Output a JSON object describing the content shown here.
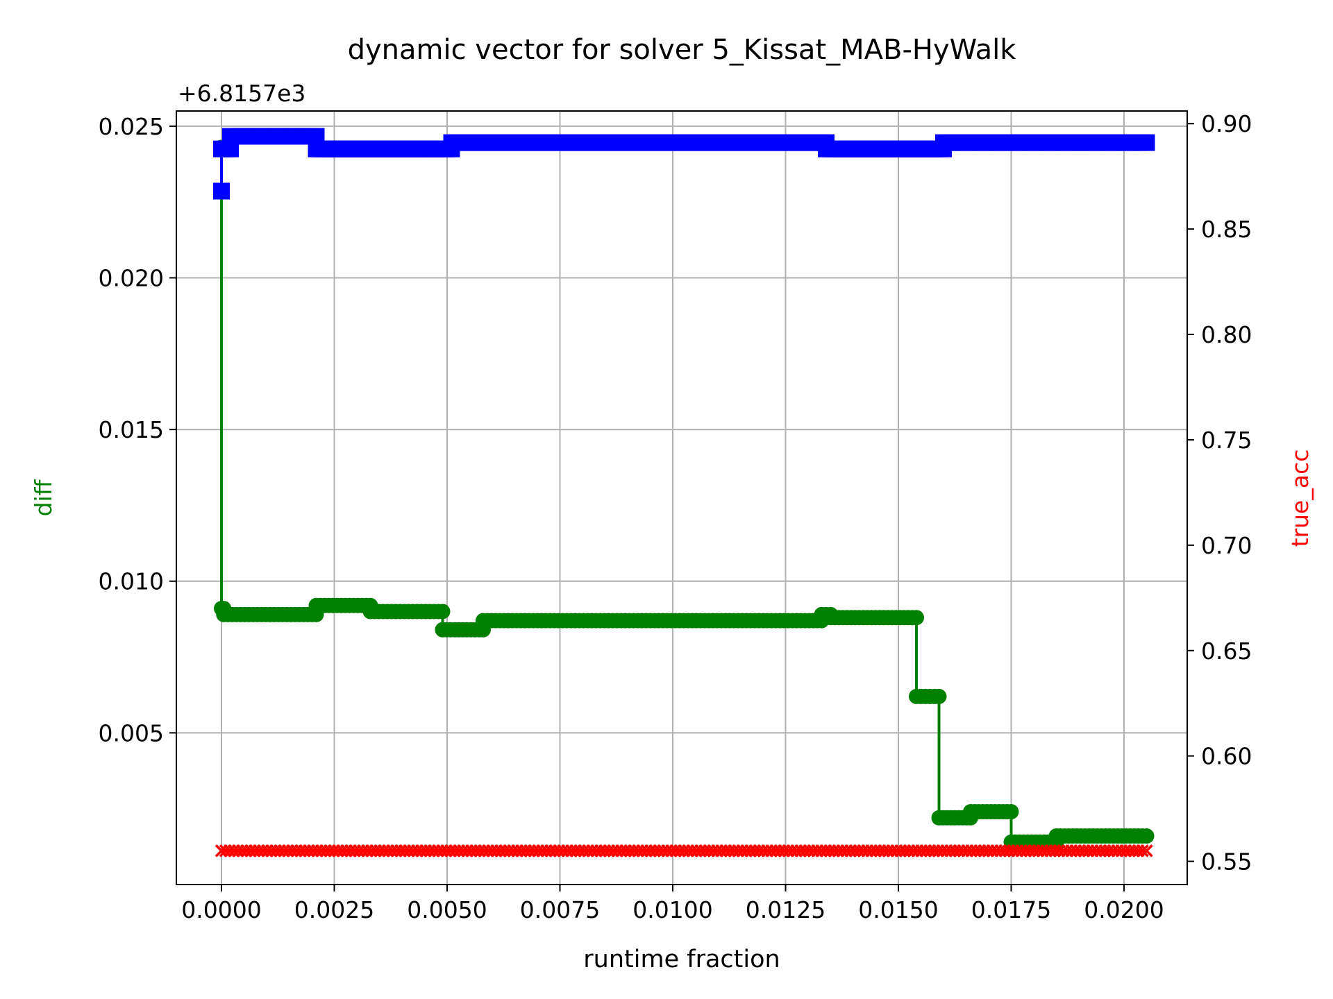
{
  "chart_data": {
    "type": "line",
    "title": "dynamic vector for solver 5_Kissat_MAB-HyWalk",
    "xlabel": "runtime fraction",
    "ylabel_left": "diff",
    "ylabel_right": "true_acc",
    "offset_label": "+6.8157e3",
    "xlim": [
      -0.001,
      0.0214
    ],
    "ylim_left": [
      0.0,
      0.0255
    ],
    "ylim_right": [
      0.539,
      0.906
    ],
    "x_ticks": [
      0.0,
      0.0025,
      0.005,
      0.0075,
      0.01,
      0.0125,
      0.015,
      0.0175,
      0.02
    ],
    "x_tick_labels": [
      "0.0000",
      "0.0025",
      "0.0050",
      "0.0075",
      "0.0100",
      "0.0125",
      "0.0150",
      "0.0175",
      "0.0200"
    ],
    "y_left_ticks": [
      0.005,
      0.01,
      0.015,
      0.02,
      0.025
    ],
    "y_left_tick_labels": [
      "0.005",
      "0.010",
      "0.015",
      "0.020",
      "0.025"
    ],
    "y_right_ticks": [
      0.55,
      0.6,
      0.65,
      0.7,
      0.75,
      0.8,
      0.85,
      0.9
    ],
    "y_right_tick_labels": [
      "0.55",
      "0.60",
      "0.65",
      "0.70",
      "0.75",
      "0.80",
      "0.85",
      "0.90"
    ],
    "grid": true,
    "colors": {
      "diff": "#008000",
      "blue_series": "#0000ff",
      "true_acc": "#ff0000",
      "ylabel_left": "#008000",
      "ylabel_right": "#ff0000"
    },
    "series": [
      {
        "axis": "left",
        "color": "#008000",
        "marker": "circle",
        "x_range": [
          0.0,
          0.0205
        ],
        "segments": [
          [
            0.0,
            0.0,
            0.0243
          ],
          [
            0.0,
            5e-05,
            0.0091
          ],
          [
            5e-05,
            0.0021,
            0.0089
          ],
          [
            0.0021,
            0.0033,
            0.0092
          ],
          [
            0.0033,
            0.0049,
            0.009
          ],
          [
            0.0049,
            0.0058,
            0.0084
          ],
          [
            0.0058,
            0.0133,
            0.0087
          ],
          [
            0.0133,
            0.0135,
            0.0089
          ],
          [
            0.0135,
            0.0154,
            0.0088
          ],
          [
            0.0154,
            0.0159,
            0.0062
          ],
          [
            0.0159,
            0.0166,
            0.0022
          ],
          [
            0.0166,
            0.0175,
            0.0024
          ],
          [
            0.0175,
            0.0185,
            0.0014
          ],
          [
            0.0185,
            0.0205,
            0.0016
          ]
        ]
      },
      {
        "axis": "right",
        "color": "#0000ff",
        "marker": "square",
        "x_range": [
          0.0,
          0.0205
        ],
        "segments": [
          [
            0.0,
            0.0,
            0.868
          ],
          [
            0.0,
            0.0002,
            0.888
          ],
          [
            0.0002,
            0.0021,
            0.894
          ],
          [
            0.0021,
            0.0051,
            0.888
          ],
          [
            0.0051,
            0.0134,
            0.891
          ],
          [
            0.0134,
            0.016,
            0.888
          ],
          [
            0.016,
            0.0205,
            0.891
          ]
        ]
      },
      {
        "axis": "right",
        "color": "#ff0000",
        "marker": "x",
        "x_range": [
          0.0,
          0.0205
        ],
        "segments": [
          [
            0.0,
            0.0205,
            0.555
          ]
        ]
      }
    ]
  }
}
